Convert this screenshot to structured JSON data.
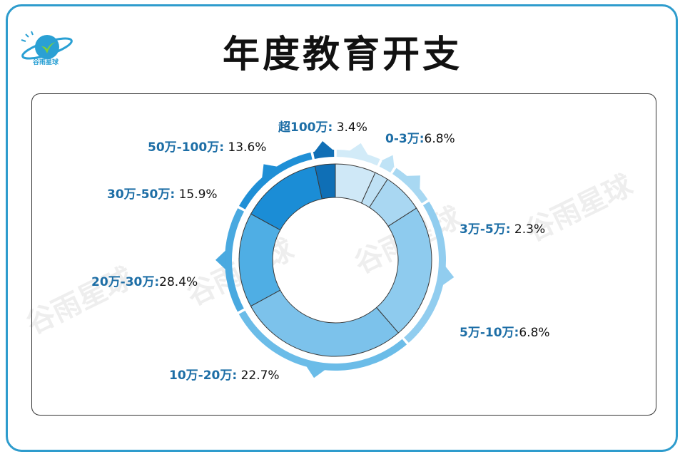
{
  "header": {
    "title": "年度教育开支",
    "logo_text": "谷雨星球"
  },
  "watermark": "谷雨星球",
  "chart_data": {
    "type": "pie",
    "style": "donut",
    "title": "年度教育开支",
    "categories": [
      "0-3万",
      "3万-5万",
      "5万-10万",
      "10万-20万",
      "20万-30万",
      "30万-50万",
      "50万-100万",
      "超100万"
    ],
    "values": [
      6.8,
      2.3,
      6.8,
      22.7,
      28.4,
      15.9,
      13.6,
      3.4
    ],
    "unit": "%",
    "labels": [
      {
        "cat": "0-3万:",
        "val": "6.8%"
      },
      {
        "cat": "3万-5万:",
        "val": " 2.3%"
      },
      {
        "cat": "5万-10万:",
        "val": "6.8%"
      },
      {
        "cat": "10万-20万:",
        "val": " 22.7%"
      },
      {
        "cat": "20万-30万:",
        "val": "28.4%"
      },
      {
        "cat": "30万-50万:",
        "val": " 15.9%"
      },
      {
        "cat": "50万-100万:",
        "val": " 13.6%"
      },
      {
        "cat": "超100万:",
        "val": " 3.4%"
      }
    ],
    "colors": [
      "#cfe8f7",
      "#bfe1f5",
      "#a9d7f2",
      "#8ecbee",
      "#7cc2eb",
      "#4faee4",
      "#1b8dd6",
      "#0f6fb6"
    ],
    "outer_colors": [
      "#d2ebf8",
      "#bfe3f6",
      "#a8d8f2",
      "#91cdef",
      "#6bbce8",
      "#49a9e0",
      "#1f8fd6",
      "#116fb5"
    ]
  }
}
